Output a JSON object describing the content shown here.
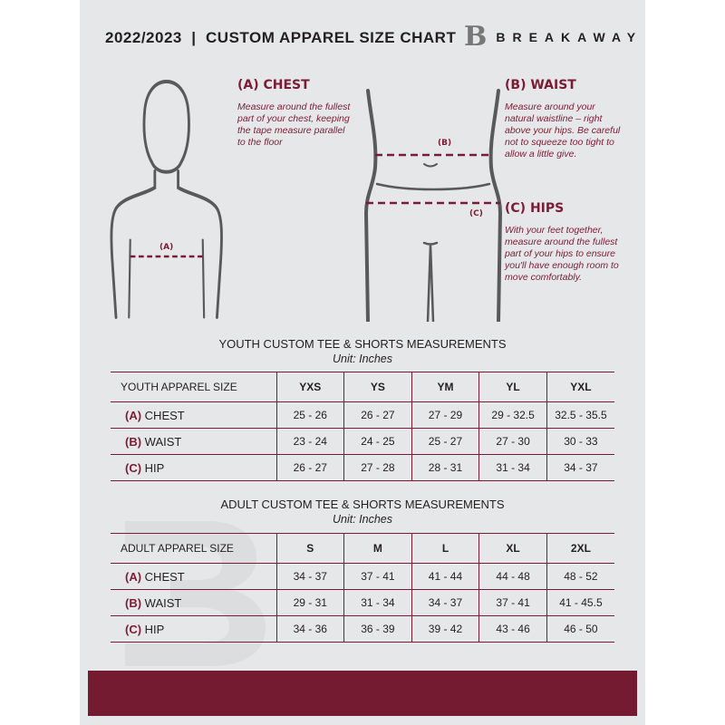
{
  "header": {
    "title": "2022/2023  |  CUSTOM APPAREL SIZE CHART",
    "logo_text": "BREAKAWAY",
    "logo_letter": "B"
  },
  "colors": {
    "accent": "#7b1c35",
    "background": "#e6e7e8",
    "footer": "#741b31"
  },
  "guide": {
    "chest": {
      "heading": "(A) CHEST",
      "text": "Measure around the fullest part of your chest, keeping the tape measure parallel to the floor",
      "marker": "(A)"
    },
    "waist": {
      "heading": "(B) WAIST",
      "text": "Measure around your natural waistline – right above your hips. Be careful not to squeeze too tight to allow a little give.",
      "marker": "(B)"
    },
    "hips": {
      "heading": "(C) HIPS",
      "text": "With your feet together, measure around the fullest part of your hips to ensure you'll have enough room to move comfortably.",
      "marker": "(C)"
    }
  },
  "youth": {
    "title": "YOUTH CUSTOM TEE & SHORTS MEASUREMENTS",
    "unit": "Unit: Inches",
    "header": [
      "YOUTH APPAREL SIZE",
      "YXS",
      "YS",
      "YM",
      "YL",
      "YXL"
    ],
    "rows": [
      {
        "code": "(A)",
        "label": "CHEST",
        "values": [
          "25 - 26",
          "26 - 27",
          "27 - 29",
          "29 - 32.5",
          "32.5 - 35.5"
        ]
      },
      {
        "code": "(B)",
        "label": "WAIST",
        "values": [
          "23 - 24",
          "24 - 25",
          "25 - 27",
          "27 - 30",
          "30 - 33"
        ]
      },
      {
        "code": "(C)",
        "label": "HIP",
        "values": [
          "26 - 27",
          "27 - 28",
          "28 - 31",
          "31 - 34",
          "34 - 37"
        ]
      }
    ]
  },
  "adult": {
    "title": "ADULT CUSTOM TEE & SHORTS MEASUREMENTS",
    "unit": "Unit: Inches",
    "header": [
      "ADULT APPAREL SIZE",
      "S",
      "M",
      "L",
      "XL",
      "2XL"
    ],
    "rows": [
      {
        "code": "(A)",
        "label": "CHEST",
        "values": [
          "34 - 37",
          "37 - 41",
          "41 - 44",
          "44 - 48",
          "48 - 52"
        ]
      },
      {
        "code": "(B)",
        "label": "WAIST",
        "values": [
          "29 - 31",
          "31 - 34",
          "34 - 37",
          "37 - 41",
          "41 - 45.5"
        ]
      },
      {
        "code": "(C)",
        "label": "HIP",
        "values": [
          "34 - 36",
          "36 - 39",
          "39 - 42",
          "43 - 46",
          "46 - 50"
        ]
      }
    ]
  }
}
